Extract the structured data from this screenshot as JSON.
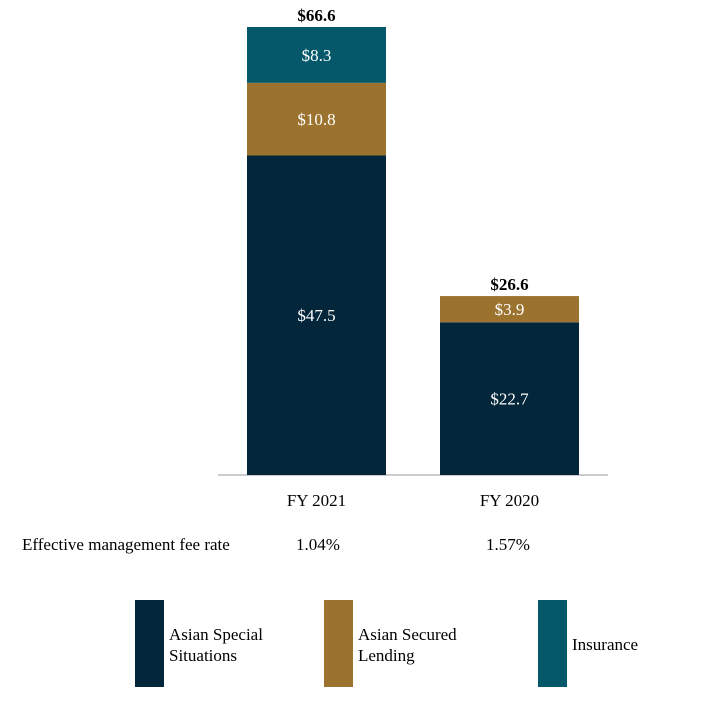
{
  "chart_data": {
    "type": "bar",
    "stacked": true,
    "categories": [
      "FY 2021",
      "FY 2020"
    ],
    "series": [
      {
        "name": "Asian Special Situations",
        "values": [
          47.5,
          22.7
        ],
        "labels": [
          "$47.5",
          "$22.7"
        ],
        "color": "#03263b"
      },
      {
        "name": "Asian Secured Lending",
        "values": [
          10.8,
          3.9
        ],
        "labels": [
          "$10.8",
          "$3.9"
        ],
        "color": "#9b732e"
      },
      {
        "name": "Insurance",
        "values": [
          8.3,
          0
        ],
        "labels": [
          "$8.3",
          ""
        ],
        "color": "#04586a"
      }
    ],
    "totals": [
      66.6,
      26.6
    ],
    "total_labels": [
      "$66.6",
      "$26.6"
    ],
    "ylim": [
      0,
      66.6
    ],
    "title": "",
    "xlabel": "",
    "ylabel": "",
    "grid": false,
    "legend_position": "bottom"
  },
  "fee_rate": {
    "label": "Effective management fee rate",
    "values": [
      "1.04%",
      "1.57%"
    ]
  },
  "legend": {
    "items": [
      {
        "line1": "Asian Special",
        "line2": "Situations",
        "color": "#03263b"
      },
      {
        "line1": "Asian Secured",
        "line2": "Lending",
        "color": "#9b732e"
      },
      {
        "line1": "Insurance",
        "line2": "",
        "color": "#04586a"
      }
    ]
  }
}
